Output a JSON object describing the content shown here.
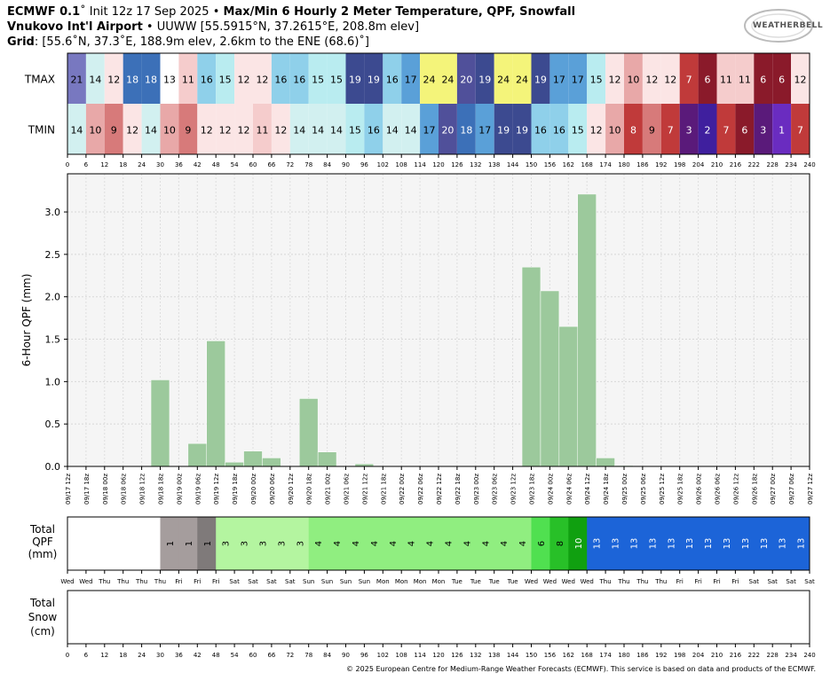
{
  "header": {
    "line1_model": "ECMWF 0.1",
    "line1_init": "˚ Init 12z 17 Sep 2025",
    "line1_title": "Max/Min 6 Hourly 2 Meter Temperature, QPF, Snowfall",
    "line2_station": "Vnukovo Int'l Airport",
    "line2_detail": "UUWW [55.5915°N, 37.2615°E, 208.8m elev]",
    "line3_label": "Grid",
    "line3_detail": ": [55.6˚N, 37.3˚E, 188.9m elev, 2.6km to the ENE (68.6)˚]"
  },
  "logo": {
    "text": "WEATHERBELL"
  },
  "temp_table": {
    "tmax_label": "TMAX",
    "tmin_label": "TMIN",
    "tmax": [
      21,
      14,
      12,
      18,
      18,
      13,
      11,
      16,
      15,
      12,
      12,
      16,
      16,
      15,
      15,
      19,
      19,
      16,
      17,
      24,
      24,
      20,
      19,
      24,
      24,
      19,
      17,
      17,
      15,
      12,
      10,
      12,
      12,
      7,
      6,
      11,
      11,
      6,
      6,
      12
    ],
    "tmin": [
      14,
      10,
      9,
      12,
      14,
      10,
      9,
      12,
      12,
      12,
      11,
      12,
      14,
      14,
      14,
      15,
      16,
      14,
      14,
      17,
      20,
      18,
      17,
      19,
      19,
      16,
      16,
      15,
      12,
      10,
      8,
      9,
      7,
      3,
      2,
      7,
      6,
      3,
      1,
      7
    ],
    "hour_ticks": [
      "0",
      "6",
      "12",
      "18",
      "24",
      "30",
      "36",
      "42",
      "48",
      "54",
      "60",
      "66",
      "72",
      "78",
      "84",
      "90",
      "96",
      "102",
      "108",
      "114",
      "120",
      "126",
      "132",
      "138",
      "144",
      "150",
      "156",
      "162",
      "168",
      "174",
      "180",
      "186",
      "192",
      "198",
      "204",
      "210",
      "216",
      "222",
      "228",
      "234",
      "240"
    ]
  },
  "chart_data": [
    {
      "type": "bar",
      "ylabel": "6-Hour QPF (mm)",
      "ylim": [
        0,
        3.45
      ],
      "yticks": [
        "0.0",
        "0.5",
        "1.0",
        "1.5",
        "2.0",
        "2.5",
        "3.0"
      ],
      "grid": true,
      "color": "#9cc99c",
      "categories": [
        "09/17 12z",
        "09/17 18z",
        "09/18 00z",
        "09/18 06z",
        "09/18 12z",
        "09/18 18z",
        "09/19 00z",
        "09/19 06z",
        "09/19 12z",
        "09/19 18z",
        "09/20 00z",
        "09/20 06z",
        "09/20 12z",
        "09/20 18z",
        "09/21 00z",
        "09/21 06z",
        "09/21 12z",
        "09/21 18z",
        "09/22 00z",
        "09/22 06z",
        "09/22 12z",
        "09/22 18z",
        "09/23 00z",
        "09/23 06z",
        "09/23 12z",
        "09/23 18z",
        "09/24 00z",
        "09/24 06z",
        "09/24 12z",
        "09/24 18z",
        "09/25 00z",
        "09/25 06z",
        "09/25 12z",
        "09/25 18z",
        "09/26 00z",
        "09/26 06z",
        "09/26 12z",
        "09/26 18z",
        "09/27 00z",
        "09/27 06z",
        "09/27 12z"
      ],
      "values": [
        0,
        0,
        0,
        0,
        0,
        1.02,
        0,
        0.27,
        1.48,
        0.05,
        0.18,
        0.1,
        0,
        0.8,
        0.17,
        0,
        0.03,
        0,
        0,
        0,
        0,
        0,
        0,
        0,
        0,
        2.35,
        2.07,
        1.65,
        3.21,
        0.1,
        0.01,
        0,
        0,
        0,
        0,
        0,
        0,
        0,
        0,
        0,
        0
      ]
    },
    {
      "type": "bar",
      "ylabel": "Total QPF (mm)",
      "ylabel_lines": [
        "Total",
        "QPF",
        "(mm)"
      ],
      "values": [
        0,
        0,
        0,
        0,
        0,
        1,
        1,
        1,
        3,
        3,
        3,
        3,
        3,
        4,
        4,
        4,
        4,
        4,
        4,
        4,
        4,
        4,
        4,
        4,
        4,
        6,
        8,
        10,
        13,
        13,
        13,
        13,
        13,
        13,
        13,
        13,
        13,
        13,
        13,
        13
      ],
      "day_labels": [
        "Wed",
        "Wed",
        "Thu",
        "Thu",
        "Thu",
        "Thu",
        "Fri",
        "Fri",
        "Fri",
        "Sat",
        "Sat",
        "Sat",
        "Sat",
        "Sun",
        "Sun",
        "Sun",
        "Sun",
        "Mon",
        "Mon",
        "Mon",
        "Mon",
        "Tue",
        "Tue",
        "Tue",
        "Tue",
        "Wed",
        "Wed",
        "Wed",
        "Wed",
        "Thu",
        "Thu",
        "Thu",
        "Thu",
        "Fri",
        "Fri",
        "Fri",
        "Fri",
        "Sat",
        "Sat",
        "Sat",
        "Sat"
      ]
    },
    {
      "type": "bar",
      "ylabel": "Total Snow (cm)",
      "ylabel_lines": [
        "Total",
        "Snow",
        "(cm)"
      ],
      "values": [
        0,
        0,
        0,
        0,
        0,
        0,
        0,
        0,
        0,
        0,
        0,
        0,
        0,
        0,
        0,
        0,
        0,
        0,
        0,
        0,
        0,
        0,
        0,
        0,
        0,
        0,
        0,
        0,
        0,
        0,
        0,
        0,
        0,
        0,
        0,
        0,
        0,
        0,
        0,
        0
      ],
      "x_ticks": [
        "0",
        "6",
        "12",
        "18",
        "24",
        "30",
        "36",
        "42",
        "48",
        "54",
        "60",
        "66",
        "72",
        "78",
        "84",
        "90",
        "96",
        "102",
        "108",
        "114",
        "120",
        "126",
        "132",
        "138",
        "144",
        "150",
        "156",
        "162",
        "168",
        "174",
        "180",
        "186",
        "192",
        "198",
        "204",
        "210",
        "216",
        "222",
        "228",
        "234",
        "240"
      ]
    }
  ],
  "footer": {
    "copyright": "© 2025 European Centre for Medium-Range Weather Forecasts (ECMWF). This service is based on data and products of the ECMWF."
  }
}
